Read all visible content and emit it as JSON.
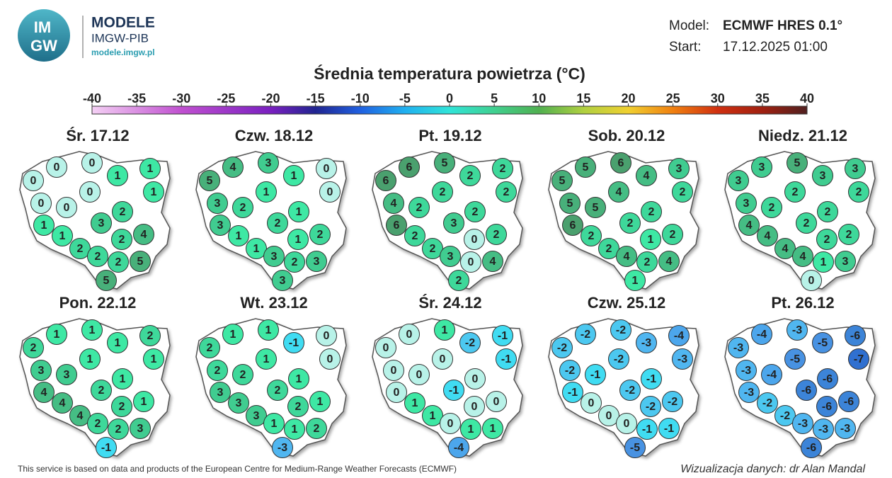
{
  "header": {
    "logo": [
      "IM",
      "GW"
    ],
    "brand": "MODELE",
    "org": "IMGW-PIB",
    "url": "modele.imgw.pl"
  },
  "model": {
    "label": "Model:",
    "value": "ECMWF HRES 0.1°"
  },
  "start": {
    "label": "Start:",
    "value": "17.12.2025 01:00"
  },
  "title": "Średnia temperatura powietrza (°C)",
  "colorbar": {
    "ticks": [
      -40,
      -35,
      -30,
      -25,
      -20,
      -15,
      -10,
      -5,
      0,
      5,
      10,
      15,
      20,
      25,
      30,
      35,
      40
    ]
  },
  "panels": [
    {
      "title": "Śr. 17.12",
      "values": [
        0,
        0,
        0,
        1,
        1,
        1,
        0,
        0,
        0,
        1,
        3,
        2,
        2,
        4,
        1,
        2,
        2,
        2,
        5,
        5
      ]
    },
    {
      "title": "Czw. 18.12",
      "values": [
        5,
        4,
        3,
        1,
        0,
        0,
        1,
        3,
        2,
        3,
        2,
        1,
        1,
        2,
        1,
        1,
        3,
        2,
        3,
        3
      ]
    },
    {
      "title": "Pt. 19.12",
      "values": [
        6,
        6,
        5,
        2,
        2,
        2,
        2,
        4,
        2,
        6,
        3,
        2,
        0,
        2,
        2,
        2,
        3,
        0,
        4,
        2
      ]
    },
    {
      "title": "Sob. 20.12",
      "values": [
        5,
        5,
        6,
        4,
        3,
        2,
        4,
        5,
        5,
        6,
        2,
        2,
        1,
        2,
        2,
        2,
        4,
        2,
        4,
        1
      ]
    },
    {
      "title": "Niedz. 21.12",
      "values": [
        3,
        3,
        5,
        3,
        3,
        2,
        2,
        3,
        2,
        4,
        2,
        2,
        2,
        2,
        4,
        4,
        4,
        1,
        3,
        0
      ]
    },
    {
      "title": "Pon. 22.12",
      "values": [
        2,
        1,
        1,
        1,
        2,
        1,
        1,
        3,
        3,
        4,
        2,
        1,
        2,
        1,
        4,
        4,
        2,
        2,
        3,
        -1
      ]
    },
    {
      "title": "Wt. 23.12",
      "values": [
        2,
        1,
        1,
        -1,
        0,
        0,
        1,
        2,
        2,
        3,
        2,
        1,
        2,
        1,
        3,
        3,
        1,
        1,
        2,
        -3
      ]
    },
    {
      "title": "Śr. 24.12",
      "values": [
        0,
        0,
        1,
        -2,
        -1,
        -1,
        0,
        0,
        0,
        0,
        -1,
        0,
        0,
        0,
        1,
        1,
        0,
        1,
        1,
        -4
      ]
    },
    {
      "title": "Czw. 25.12",
      "values": [
        -2,
        -2,
        -2,
        -3,
        -4,
        -3,
        -2,
        -2,
        -1,
        -1,
        -2,
        -1,
        -2,
        -2,
        0,
        0,
        0,
        -1,
        -1,
        -5
      ]
    },
    {
      "title": "Pt. 26.12",
      "values": [
        -3,
        -4,
        -3,
        -5,
        -6,
        -7,
        -5,
        -3,
        -4,
        -3,
        -6,
        -6,
        -6,
        -6,
        -2,
        -2,
        -3,
        -3,
        -3,
        -6
      ]
    }
  ],
  "footer": {
    "source": "This service is based on data and products of the European Centre for Medium-Range Weather Forecasts (ECMWF)",
    "credit": "Wizualizacja danych: dr Alan Mandal"
  }
}
